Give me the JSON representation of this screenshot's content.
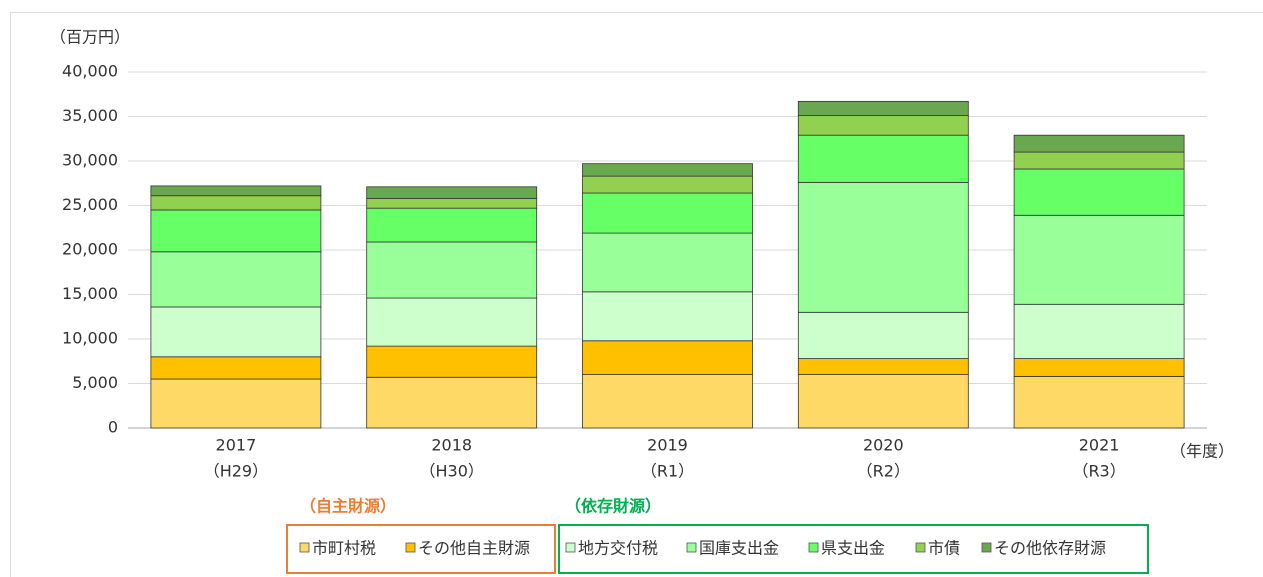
{
  "chart_data": {
    "type": "stacked_bar",
    "y_axis_label": "（百万円）",
    "x_axis_label": "（年度）",
    "categories": [
      "2017",
      "2018",
      "2019",
      "2020",
      "2021"
    ],
    "category_sublabels": [
      "（H29）",
      "（H30）",
      "（R1）",
      "（R2）",
      "（R3）"
    ],
    "series": [
      {
        "name": "市町村税",
        "color": "#ffd966",
        "values": [
          5500,
          5700,
          6000,
          6000,
          5800
        ]
      },
      {
        "name": "その他自主財源",
        "color": "#ffc000",
        "values": [
          2500,
          3500,
          3800,
          1800,
          2000
        ]
      },
      {
        "name": "地方交付税",
        "color": "#ccffcc",
        "values": [
          5600,
          5400,
          5500,
          5200,
          6100
        ]
      },
      {
        "name": "国庫支出金",
        "color": "#99ff99",
        "values": [
          6200,
          6300,
          6600,
          14600,
          10000
        ]
      },
      {
        "name": "県支出金",
        "color": "#66ff66",
        "values": [
          4700,
          3800,
          4500,
          5300,
          5200
        ]
      },
      {
        "name": "市債",
        "color": "#92d050",
        "values": [
          1600,
          1100,
          1900,
          2200,
          1900
        ]
      },
      {
        "name": "その他依存財源",
        "color": "#6aa84f",
        "values": [
          1100,
          1300,
          1400,
          1600,
          1900
        ]
      }
    ],
    "legend_groups": [
      {
        "title": "（自主財源）",
        "color": "#ed7d31"
      },
      {
        "title": "（依存財源）",
        "color": "#00b050"
      }
    ],
    "ylim": [
      0,
      40000
    ],
    "yticks": [
      0,
      {
        "value": 5000,
        "label": "5,000"
      },
      {
        "value": 10000,
        "label": "10,000"
      },
      {
        "value": 15000,
        "label": "15,000"
      },
      {
        "value": 20000,
        "label": "20,000"
      },
      {
        "value": 25000,
        "label": "25,000"
      },
      {
        "value": 30000,
        "label": "30,000"
      },
      {
        "value": 35000,
        "label": "35,000"
      },
      {
        "value": 40000,
        "label": "40,000"
      }
    ],
    "grid": true
  }
}
